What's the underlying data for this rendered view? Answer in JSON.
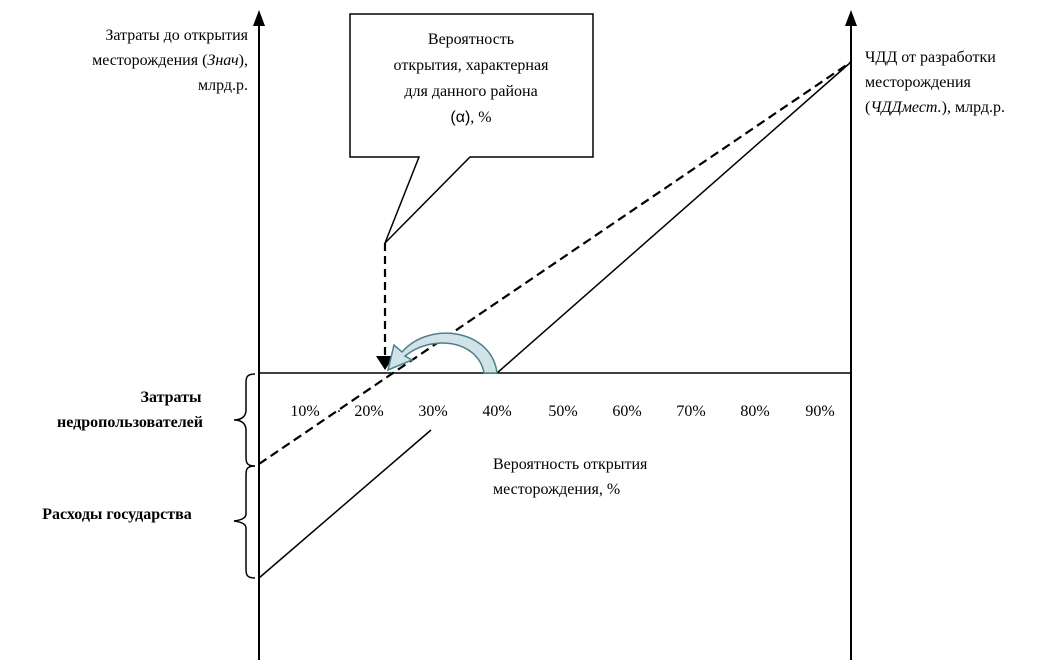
{
  "left_axis_label": {
    "line1": "Затраты до открытия",
    "line2_pre": "месторождения (",
    "line2_italic": "Знач",
    "line2_post": "),",
    "line3": "млрд.р."
  },
  "right_axis_label": {
    "line1": "ЧДД от разработки",
    "line2": "месторождения",
    "line3_pre": "(",
    "line3_italic": "ЧДДмест.",
    "line3_post": "), млрд.р."
  },
  "callout": {
    "line1": "Вероятность",
    "line2": "открытия, характерная",
    "line3": "для данного района",
    "line4_symbol": "(α)",
    "line4_post": ", %"
  },
  "x_ticks": [
    "10%",
    "20%",
    "30%",
    "40%",
    "50%",
    "60%",
    "70%",
    "80%",
    "90%"
  ],
  "x_axis_label": {
    "line1": "Вероятность открытия",
    "line2": "месторождения, %"
  },
  "brace_labels": {
    "users_line1": "Затраты",
    "users_line2": "недропользователей",
    "state": "Расходы государства"
  },
  "lines": [
    {
      "name": "dashed-line",
      "style": "dashed"
    },
    {
      "name": "solid-line",
      "style": "solid"
    }
  ],
  "colors": {
    "stroke": "#000000",
    "arrow_fill": "#cfe3e8",
    "arrow_stroke": "#4f7f8a"
  }
}
